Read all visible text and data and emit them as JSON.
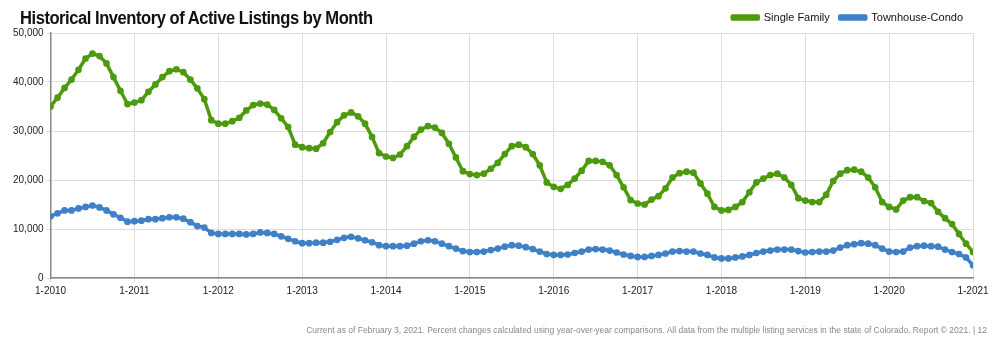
{
  "chart_data": {
    "type": "line",
    "title": "Historical Inventory of Active Listings by Month",
    "annotations": [
      "Current as of February 3, 2021. Percent changes calculated using year-over-year comparisons. All data from the multiple listing services in the state of Colorado. Report © 2021.  |  12"
    ],
    "x": [
      "2010-01",
      "2010-02",
      "2010-03",
      "2010-04",
      "2010-05",
      "2010-06",
      "2010-07",
      "2010-08",
      "2010-09",
      "2010-10",
      "2010-11",
      "2010-12",
      "2011-01",
      "2011-02",
      "2011-03",
      "2011-04",
      "2011-05",
      "2011-06",
      "2011-07",
      "2011-08",
      "2011-09",
      "2011-10",
      "2011-11",
      "2011-12",
      "2012-01",
      "2012-02",
      "2012-03",
      "2012-04",
      "2012-05",
      "2012-06",
      "2012-07",
      "2012-08",
      "2012-09",
      "2012-10",
      "2012-11",
      "2012-12",
      "2013-01",
      "2013-02",
      "2013-03",
      "2013-04",
      "2013-05",
      "2013-06",
      "2013-07",
      "2013-08",
      "2013-09",
      "2013-10",
      "2013-11",
      "2013-12",
      "2014-01",
      "2014-02",
      "2014-03",
      "2014-04",
      "2014-05",
      "2014-06",
      "2014-07",
      "2014-08",
      "2014-09",
      "2014-10",
      "2014-11",
      "2014-12",
      "2015-01",
      "2015-02",
      "2015-03",
      "2015-04",
      "2015-05",
      "2015-06",
      "2015-07",
      "2015-08",
      "2015-09",
      "2015-10",
      "2015-11",
      "2015-12",
      "2016-01",
      "2016-02",
      "2016-03",
      "2016-04",
      "2016-05",
      "2016-06",
      "2016-07",
      "2016-08",
      "2016-09",
      "2016-10",
      "2016-11",
      "2016-12",
      "2017-01",
      "2017-02",
      "2017-03",
      "2017-04",
      "2017-05",
      "2017-06",
      "2017-07",
      "2017-08",
      "2017-09",
      "2017-10",
      "2017-11",
      "2017-12",
      "2018-01",
      "2018-02",
      "2018-03",
      "2018-04",
      "2018-05",
      "2018-06",
      "2018-07",
      "2018-08",
      "2018-09",
      "2018-10",
      "2018-11",
      "2018-12",
      "2019-01",
      "2019-02",
      "2019-03",
      "2019-04",
      "2019-05",
      "2019-06",
      "2019-07",
      "2019-08",
      "2019-09",
      "2019-10",
      "2019-11",
      "2019-12",
      "2020-01",
      "2020-02",
      "2020-03",
      "2020-04",
      "2020-05",
      "2020-06",
      "2020-07",
      "2020-08",
      "2020-09",
      "2020-10",
      "2020-11",
      "2020-12",
      "2021-01"
    ],
    "series": [
      {
        "name": "Single Family",
        "color": "#4c9a0e",
        "values": [
          35000,
          36800,
          38800,
          40500,
          42500,
          44800,
          45800,
          45300,
          43800,
          41000,
          38200,
          35500,
          35800,
          36300,
          38000,
          39500,
          41000,
          42200,
          42600,
          42000,
          40500,
          38700,
          36500,
          32200,
          31500,
          31500,
          32000,
          32700,
          34200,
          35300,
          35600,
          35400,
          34300,
          32600,
          30800,
          27200,
          26700,
          26500,
          26400,
          27500,
          29800,
          31800,
          33200,
          33800,
          33000,
          31500,
          28800,
          25500,
          24800,
          24500,
          25200,
          26900,
          28800,
          30300,
          31000,
          30700,
          29600,
          27400,
          24600,
          21800,
          21200,
          21000,
          21300,
          22300,
          23500,
          25300,
          26900,
          27200,
          26700,
          25300,
          23000,
          19500,
          18600,
          18200,
          19000,
          20300,
          21900,
          23900,
          23900,
          23700,
          23000,
          21000,
          18500,
          15900,
          15200,
          15000,
          16000,
          16700,
          18300,
          20500,
          21400,
          21700,
          21500,
          19300,
          17200,
          14500,
          13800,
          13900,
          14500,
          15500,
          17500,
          19500,
          20300,
          21000,
          21300,
          20500,
          19000,
          16300,
          15800,
          15500,
          15500,
          17000,
          19800,
          21300,
          22000,
          22100,
          21700,
          20500,
          18500,
          15500,
          14500,
          14000,
          15800,
          16500,
          16500,
          15700,
          15300,
          13500,
          12200,
          11000,
          9000,
          7000,
          5300
        ]
      },
      {
        "name": "Townhouse-Condo",
        "color": "#3f80c6",
        "values": [
          12600,
          13200,
          13800,
          13800,
          14200,
          14500,
          14800,
          14400,
          13800,
          13000,
          12300,
          11500,
          11600,
          11700,
          12000,
          12000,
          12200,
          12400,
          12400,
          12100,
          11400,
          10600,
          10300,
          9200,
          9000,
          9000,
          9000,
          9000,
          8900,
          9000,
          9300,
          9200,
          9000,
          8500,
          8000,
          7500,
          7100,
          7100,
          7200,
          7200,
          7400,
          7800,
          8200,
          8400,
          8100,
          7700,
          7300,
          6700,
          6500,
          6500,
          6500,
          6600,
          7000,
          7500,
          7700,
          7500,
          7000,
          6500,
          6000,
          5500,
          5300,
          5300,
          5400,
          5700,
          6000,
          6400,
          6700,
          6600,
          6300,
          5900,
          5400,
          4900,
          4700,
          4700,
          4800,
          5100,
          5400,
          5800,
          5900,
          5800,
          5600,
          5200,
          4800,
          4500,
          4300,
          4300,
          4500,
          4700,
          5000,
          5400,
          5500,
          5400,
          5400,
          5000,
          4700,
          4200,
          4000,
          4000,
          4200,
          4400,
          4700,
          5100,
          5400,
          5600,
          5800,
          5800,
          5800,
          5500,
          5200,
          5300,
          5400,
          5400,
          5600,
          6200,
          6700,
          6900,
          7100,
          7000,
          6700,
          6000,
          5400,
          5300,
          5400,
          6200,
          6500,
          6600,
          6500,
          6400,
          5800,
          5300,
          4900,
          4200,
          2600
        ]
      }
    ],
    "xlim": [
      "2010-01",
      "2021-01"
    ],
    "xticks": [
      {
        "value": "2010-01",
        "label": "1-2010"
      },
      {
        "value": "2011-01",
        "label": "1-2011"
      },
      {
        "value": "2012-01",
        "label": "1-2012"
      },
      {
        "value": "2013-01",
        "label": "1-2013"
      },
      {
        "value": "2014-01",
        "label": "1-2014"
      },
      {
        "value": "2015-01",
        "label": "1-2015"
      },
      {
        "value": "2016-01",
        "label": "1-2016"
      },
      {
        "value": "2017-01",
        "label": "1-2017"
      },
      {
        "value": "2018-01",
        "label": "1-2018"
      },
      {
        "value": "2019-01",
        "label": "1-2019"
      },
      {
        "value": "2020-01",
        "label": "1-2020"
      },
      {
        "value": "2021-01",
        "label": "1-2021"
      }
    ],
    "ylim": [
      0,
      50000
    ],
    "yticks": [
      {
        "value": 0,
        "label": "0"
      },
      {
        "value": 10000,
        "label": "10,000"
      },
      {
        "value": 20000,
        "label": "20,000"
      },
      {
        "value": 30000,
        "label": "30,000"
      },
      {
        "value": 40000,
        "label": "40,000"
      },
      {
        "value": 50000,
        "label": "50,000"
      }
    ],
    "grid": true,
    "legend": "top right",
    "marker": "circle",
    "line_style": "solid"
  }
}
